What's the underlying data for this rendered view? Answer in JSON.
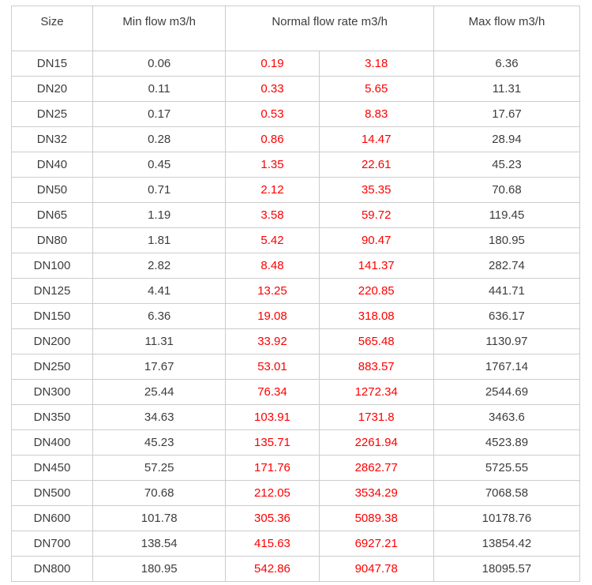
{
  "page": {
    "background": "#ffffff"
  },
  "flow_table": {
    "columns": {
      "size": "Size",
      "min_flow": "Min flow m3/h",
      "normal_flow": "Normal flow rate m3/h",
      "max_flow": "Max flow m3/h"
    },
    "colors": {
      "body_text": "#3d3d3d",
      "normal_flow_text": "#fe0000",
      "border": "#cccccc"
    },
    "rows": [
      {
        "size": "DN15",
        "min": "0.06",
        "normal_low": "0.19",
        "normal_high": "3.18",
        "max": "6.36"
      },
      {
        "size": "DN20",
        "min": "0.11",
        "normal_low": "0.33",
        "normal_high": "5.65",
        "max": "11.31"
      },
      {
        "size": "DN25",
        "min": "0.17",
        "normal_low": "0.53",
        "normal_high": "8.83",
        "max": "17.67"
      },
      {
        "size": "DN32",
        "min": "0.28",
        "normal_low": "0.86",
        "normal_high": "14.47",
        "max": "28.94"
      },
      {
        "size": "DN40",
        "min": "0.45",
        "normal_low": "1.35",
        "normal_high": "22.61",
        "max": "45.23"
      },
      {
        "size": "DN50",
        "min": "0.71",
        "normal_low": "2.12",
        "normal_high": "35.35",
        "max": "70.68"
      },
      {
        "size": "DN65",
        "min": "1.19",
        "normal_low": "3.58",
        "normal_high": "59.72",
        "max": "119.45"
      },
      {
        "size": "DN80",
        "min": "1.81",
        "normal_low": "5.42",
        "normal_high": "90.47",
        "max": "180.95"
      },
      {
        "size": "DN100",
        "min": "2.82",
        "normal_low": "8.48",
        "normal_high": "141.37",
        "max": "282.74"
      },
      {
        "size": "DN125",
        "min": "4.41",
        "normal_low": "13.25",
        "normal_high": "220.85",
        "max": "441.71"
      },
      {
        "size": "DN150",
        "min": "6.36",
        "normal_low": "19.08",
        "normal_high": "318.08",
        "max": "636.17"
      },
      {
        "size": "DN200",
        "min": "11.31",
        "normal_low": "33.92",
        "normal_high": "565.48",
        "max": "1130.97"
      },
      {
        "size": "DN250",
        "min": "17.67",
        "normal_low": "53.01",
        "normal_high": "883.57",
        "max": "1767.14"
      },
      {
        "size": "DN300",
        "min": "25.44",
        "normal_low": "76.34",
        "normal_high": "1272.34",
        "max": "2544.69"
      },
      {
        "size": "DN350",
        "min": "34.63",
        "normal_low": "103.91",
        "normal_high": "1731.8",
        "max": "3463.6"
      },
      {
        "size": "DN400",
        "min": "45.23",
        "normal_low": "135.71",
        "normal_high": "2261.94",
        "max": "4523.89"
      },
      {
        "size": "DN450",
        "min": "57.25",
        "normal_low": "171.76",
        "normal_high": "2862.77",
        "max": "5725.55"
      },
      {
        "size": "DN500",
        "min": "70.68",
        "normal_low": "212.05",
        "normal_high": "3534.29",
        "max": "7068.58"
      },
      {
        "size": "DN600",
        "min": "101.78",
        "normal_low": "305.36",
        "normal_high": "5089.38",
        "max": "10178.76"
      },
      {
        "size": "DN700",
        "min": "138.54",
        "normal_low": "415.63",
        "normal_high": "6927.21",
        "max": "13854.42"
      },
      {
        "size": "DN800",
        "min": "180.95",
        "normal_low": "542.86",
        "normal_high": "9047.78",
        "max": "18095.57"
      }
    ]
  }
}
